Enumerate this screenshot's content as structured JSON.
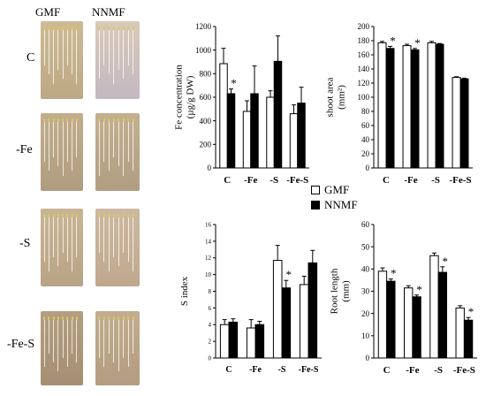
{
  "photo_panel": {
    "column_labels": [
      "GMF",
      "NNMF"
    ],
    "row_labels": [
      "C",
      "-Fe",
      "-S",
      "-Fe-S"
    ]
  },
  "legend": {
    "items": [
      {
        "label": "GMF",
        "color": "#ffffff"
      },
      {
        "label": "NNMF",
        "color": "#000000"
      }
    ]
  },
  "chart_data": [
    {
      "id": "fe",
      "type": "bar",
      "ylabel": "Fe concentration (µg/g DW)",
      "categories": [
        "C",
        "-Fe",
        "-S",
        "-Fe-S"
      ],
      "ylim": [
        0,
        1200
      ],
      "yticks": [
        0,
        200,
        400,
        600,
        800,
        1000,
        1200
      ],
      "series": [
        {
          "name": "GMF",
          "values": [
            885,
            480,
            600,
            460
          ],
          "errors": [
            130,
            90,
            55,
            75
          ]
        },
        {
          "name": "NNMF",
          "values": [
            630,
            630,
            905,
            550
          ],
          "errors": [
            40,
            235,
            215,
            135
          ]
        }
      ],
      "significance": [
        {
          "category": "C",
          "label": "*"
        }
      ]
    },
    {
      "id": "shoot",
      "type": "bar",
      "ylabel": "shoot area (mm²)",
      "categories": [
        "C",
        "-Fe",
        "-S",
        "-Fe-S"
      ],
      "ylim": [
        0,
        200
      ],
      "yticks": [
        0,
        20,
        40,
        60,
        80,
        100,
        120,
        140,
        160,
        180,
        200
      ],
      "series": [
        {
          "name": "GMF",
          "values": [
            177,
            173,
            177,
            128
          ],
          "errors": [
            2,
            2,
            2,
            1
          ]
        },
        {
          "name": "NNMF",
          "values": [
            169,
            167,
            175,
            126
          ],
          "errors": [
            3,
            2,
            1,
            1
          ]
        }
      ],
      "significance": [
        {
          "category": "C",
          "label": "*"
        },
        {
          "category": "-Fe",
          "label": "*"
        }
      ]
    },
    {
      "id": "sindex",
      "type": "bar",
      "ylabel": "S index",
      "categories": [
        "C",
        "-Fe",
        "-S",
        "-Fe-S"
      ],
      "ylim": [
        0,
        16
      ],
      "yticks": [
        0,
        2,
        4,
        6,
        8,
        10,
        12,
        14,
        16
      ],
      "series": [
        {
          "name": "GMF",
          "values": [
            4.0,
            3.6,
            11.7,
            8.8
          ],
          "errors": [
            0.6,
            1.0,
            1.8,
            1.0
          ]
        },
        {
          "name": "NNMF",
          "values": [
            4.3,
            4.0,
            8.4,
            11.4
          ],
          "errors": [
            0.4,
            0.4,
            0.9,
            1.5
          ]
        }
      ],
      "significance": [
        {
          "category": "-S",
          "label": "*"
        }
      ]
    },
    {
      "id": "root",
      "type": "bar",
      "ylabel": "Root length (mm)",
      "categories": [
        "C",
        "-Fe",
        "-S",
        "-Fe-S"
      ],
      "ylim": [
        0,
        60
      ],
      "yticks": [
        0,
        10,
        20,
        30,
        40,
        50,
        60
      ],
      "series": [
        {
          "name": "GMF",
          "values": [
            39,
            31.5,
            46,
            22.5
          ],
          "errors": [
            1.5,
            1.0,
            1.2,
            1.0
          ]
        },
        {
          "name": "NNMF",
          "values": [
            34.5,
            27.5,
            38.5,
            17
          ],
          "errors": [
            1.0,
            0.8,
            2.5,
            1.2
          ]
        }
      ],
      "significance": [
        {
          "category": "C",
          "label": "*"
        },
        {
          "category": "-Fe",
          "label": "*"
        },
        {
          "category": "-S",
          "label": "*"
        },
        {
          "category": "-Fe-S",
          "label": "*"
        }
      ]
    }
  ]
}
